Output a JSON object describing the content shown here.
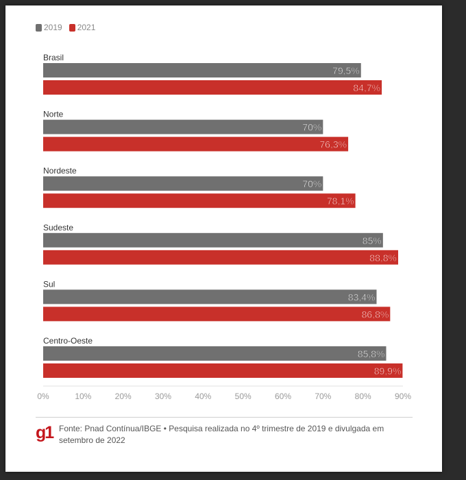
{
  "legend": {
    "y2019": "2019",
    "y2021": "2021",
    "color_2019": "#707070",
    "color_2021": "#c8302a"
  },
  "chart_data": {
    "type": "bar",
    "orientation": "horizontal",
    "categories": [
      "Brasil",
      "Norte",
      "Nordeste",
      "Sudeste",
      "Sul",
      "Centro-Oeste"
    ],
    "series": [
      {
        "name": "2019",
        "values": [
          79.5,
          70,
          70,
          85,
          83.4,
          85.8
        ],
        "labels": [
          "79,5%",
          "70%",
          "70%",
          "85%",
          "83,4%",
          "85,8%"
        ]
      },
      {
        "name": "2021",
        "values": [
          84.7,
          76.3,
          78.1,
          88.8,
          86.8,
          89.9
        ],
        "labels": [
          "84,7%",
          "76,3%",
          "78,1%",
          "88,8%",
          "86,8%",
          "89,9%"
        ]
      }
    ],
    "xlim": [
      0,
      90
    ],
    "x_ticks": [
      0,
      10,
      20,
      30,
      40,
      50,
      60,
      70,
      80,
      90
    ],
    "x_tick_labels": [
      "0%",
      "10%",
      "20%",
      "30%",
      "40%",
      "50%",
      "60%",
      "70%",
      "80%",
      "90%"
    ],
    "grid": false
  },
  "footer": {
    "logo": "g1",
    "source": "Fonte: Pnad Contínua/IBGE • Pesquisa realizada no 4º trimestre de 2019 e divulgada em setembro de 2022"
  }
}
